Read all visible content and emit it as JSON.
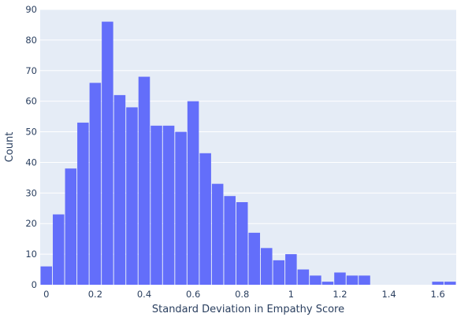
{
  "chart_data": {
    "type": "bar",
    "xlabel": "Standard Deviation in Empathy Score",
    "ylabel": "Count",
    "xlim": [
      -0.025,
      1.675
    ],
    "ylim": [
      0,
      90
    ],
    "grid": true,
    "bin_width": 0.05,
    "bin_starts": [
      -0.025,
      0.025,
      0.075,
      0.125,
      0.175,
      0.225,
      0.275,
      0.325,
      0.375,
      0.425,
      0.475,
      0.525,
      0.575,
      0.625,
      0.675,
      0.725,
      0.775,
      0.825,
      0.875,
      0.925,
      0.975,
      1.025,
      1.075,
      1.125,
      1.175,
      1.225,
      1.275,
      1.325,
      1.375,
      1.425,
      1.475,
      1.525,
      1.575,
      1.625
    ],
    "counts": [
      6,
      23,
      38,
      53,
      66,
      86,
      62,
      58,
      68,
      52,
      52,
      50,
      60,
      43,
      33,
      29,
      27,
      17,
      12,
      8,
      10,
      5,
      3,
      1,
      4,
      3,
      3,
      0,
      0,
      0,
      0,
      0,
      1,
      1
    ],
    "x_ticks": [
      0,
      0.2,
      0.4,
      0.6,
      0.8,
      1,
      1.2,
      1.4,
      1.6
    ],
    "x_tick_labels": [
      "0",
      "0.2",
      "0.4",
      "0.6",
      "0.8",
      "1",
      "1.2",
      "1.4",
      "1.6"
    ],
    "y_ticks": [
      0,
      10,
      20,
      30,
      40,
      50,
      60,
      70,
      80,
      90
    ],
    "y_tick_labels": [
      "0",
      "10",
      "20",
      "30",
      "40",
      "50",
      "60",
      "70",
      "80",
      "90"
    ],
    "colors": {
      "bar": "#636efa",
      "plot_bg": "#e5ecf6",
      "grid": "#ffffff",
      "text": "#2a3f5f"
    }
  }
}
